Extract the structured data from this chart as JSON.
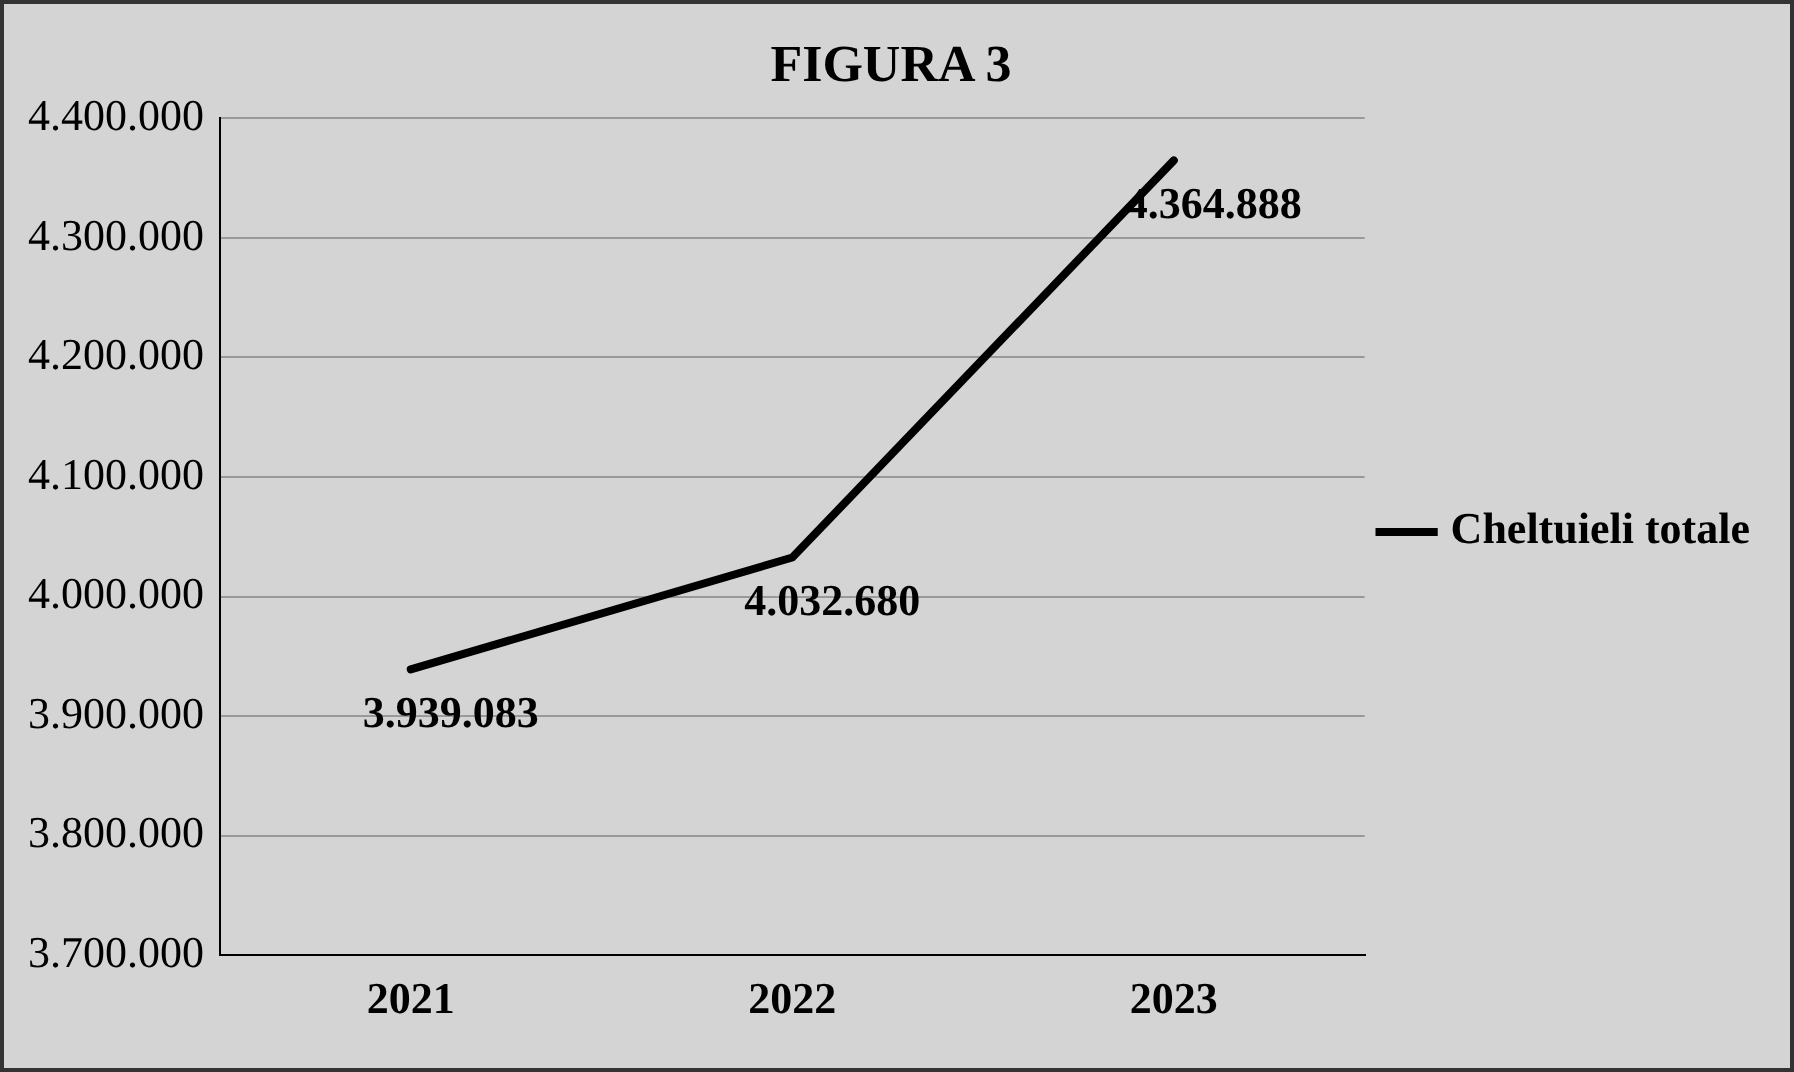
{
  "chart_data": {
    "type": "line",
    "title": "FIGURA 3",
    "categories": [
      "2021",
      "2022",
      "2023"
    ],
    "series": [
      {
        "name": "Cheltuieli totale",
        "color": "#000000",
        "values": [
          3939083,
          4032680,
          4364888
        ],
        "value_labels": [
          "3.939.083",
          "4.032.680",
          "4.364.888"
        ]
      }
    ],
    "ylim": [
      3700000,
      4400000
    ],
    "yticks": [
      {
        "value": 3700000,
        "label": "3.700.000"
      },
      {
        "value": 3800000,
        "label": "3.800.000"
      },
      {
        "value": 3900000,
        "label": "3.900.000"
      },
      {
        "value": 4000000,
        "label": "4.000.000"
      },
      {
        "value": 4100000,
        "label": "4.100.000"
      },
      {
        "value": 4200000,
        "label": "4.200.000"
      },
      {
        "value": 4300000,
        "label": "4.300.000"
      },
      {
        "value": 4400000,
        "label": "4.400.000"
      }
    ],
    "grid": "y",
    "legend": "right",
    "marker": "none",
    "line_style": "solid"
  }
}
